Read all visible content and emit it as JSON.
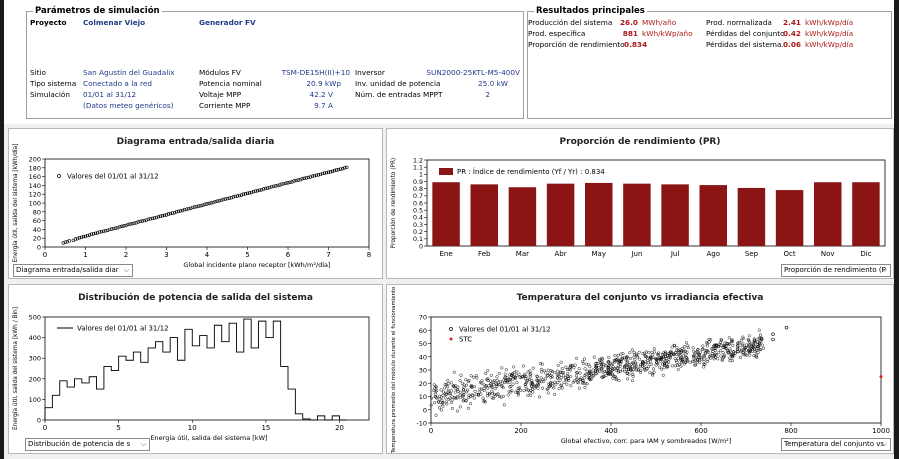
{
  "params": {
    "legend": "Parámetros de simulación",
    "proyecto_label": "Proyecto",
    "proyecto_value": "Colmenar Viejo",
    "generador_label": "Generador FV",
    "sitio_label": "Sitio",
    "sitio_value": "San Agustín del Guadalix",
    "tipo_label": "Tipo sistema",
    "tipo_value": "Conectado a la red",
    "sim_label": "Simulación",
    "sim_value": "01/01 al 31/12",
    "meteo_value": "(Datos meteo genéricos)",
    "modulos_label": "Módulos FV",
    "modulos_value": "TSM-DE15H(II)+10",
    "potencia_label": "Potencia nominal",
    "potencia_value": "20.9 kWp",
    "voltaje_label": "Voltaje MPP",
    "voltaje_value": "42.2  V",
    "corriente_label": "Corriente MPP",
    "corriente_value": "9.7  A",
    "inversor_label": "Inversor",
    "inversor_value": "SUN2000-25KTL-M5-400V",
    "inv_unidad_label": "Inv. unidad de potencia",
    "inv_unidad_value": "25.0  kW",
    "entradas_label": "Núm. de entradas MPPT",
    "entradas_value": "2"
  },
  "results": {
    "legend": "Resultados principales",
    "produccion_label": "Producción del sistema",
    "produccion_value": "26.0",
    "produccion_unit": "MWh/año",
    "especifica_label": "Prod. específica",
    "especifica_value": "881",
    "especifica_unit": "kWh/kWp/año",
    "proporcion_label": "Proporción de rendimiento",
    "proporcion_value": "0.834",
    "normalizada_label": "Prod. normalizada",
    "normalizada_value": "2.41",
    "normalizada_unit": "kWh/kWp/día",
    "perd_conjunto_label": "Pérdidas del conjunto",
    "perd_conjunto_value": "0.42",
    "perd_conjunto_unit": "kWh/kWp/día",
    "perd_sistema_label": "Pérdidas del sistema.",
    "perd_sistema_value": "0.06",
    "perd_sistema_unit": "kWh/kWp/día"
  },
  "selects": {
    "p1": "Diagrama entrada/salida diar",
    "p2": "Proporción de rendimiento (P",
    "p3": "Distribución de potencia de s",
    "p4": "Temperatura del conjunto vs"
  },
  "colors": {
    "bar": "#8b1414",
    "stc": "#e02020",
    "value_red": "#b01818",
    "nav_blue": "#1f3fa0"
  },
  "chart_data": [
    {
      "type": "scatter",
      "title": "Diagrama entrada/salida diaria",
      "xlabel": "Global incidente plano receptor [kWh/m²/día]",
      "ylabel": "Energía útil, salida del sistema [kWh/día]",
      "legend": "Valores del 01/01 al 31/12",
      "xlim": [
        0,
        8
      ],
      "ylim": [
        0,
        200
      ],
      "xticks": [
        0,
        1,
        2,
        3,
        4,
        5,
        6,
        7,
        8
      ],
      "yticks": [
        0,
        20,
        40,
        60,
        80,
        100,
        120,
        140,
        160,
        180,
        200
      ],
      "trend": {
        "slope": 24.2,
        "intercept": 0
      },
      "points": [
        [
          0.45,
          9
        ],
        [
          0.5,
          11
        ],
        [
          0.55,
          12
        ],
        [
          0.6,
          14
        ],
        [
          0.7,
          15
        ],
        [
          0.75,
          18
        ],
        [
          0.8,
          19
        ],
        [
          0.85,
          21
        ],
        [
          0.9,
          22
        ],
        [
          0.95,
          24
        ],
        [
          1.0,
          24
        ],
        [
          1.05,
          26
        ],
        [
          1.1,
          27
        ],
        [
          1.15,
          29
        ],
        [
          1.2,
          30
        ],
        [
          1.25,
          31
        ],
        [
          1.3,
          32
        ],
        [
          1.35,
          34
        ],
        [
          1.4,
          35
        ],
        [
          1.45,
          36
        ],
        [
          1.5,
          37
        ],
        [
          1.55,
          38
        ],
        [
          1.6,
          40
        ],
        [
          1.65,
          41
        ],
        [
          1.7,
          42
        ],
        [
          1.75,
          43
        ],
        [
          1.8,
          44
        ],
        [
          1.85,
          46
        ],
        [
          1.9,
          47
        ],
        [
          1.95,
          48
        ],
        [
          2.0,
          49
        ],
        [
          2.05,
          51
        ],
        [
          2.1,
          52
        ],
        [
          2.15,
          53
        ],
        [
          2.2,
          54
        ],
        [
          2.25,
          55
        ],
        [
          2.3,
          57
        ],
        [
          2.35,
          58
        ],
        [
          2.4,
          59
        ],
        [
          2.45,
          60
        ],
        [
          2.5,
          61
        ],
        [
          2.55,
          63
        ],
        [
          2.6,
          64
        ],
        [
          2.65,
          65
        ],
        [
          2.7,
          66
        ],
        [
          2.75,
          67
        ],
        [
          2.8,
          69
        ],
        [
          2.85,
          70
        ],
        [
          2.9,
          71
        ],
        [
          2.95,
          72
        ],
        [
          3.0,
          73
        ],
        [
          3.05,
          75
        ],
        [
          3.1,
          76
        ],
        [
          3.15,
          77
        ],
        [
          3.2,
          78
        ],
        [
          3.25,
          80
        ],
        [
          3.3,
          81
        ],
        [
          3.35,
          82
        ],
        [
          3.4,
          83
        ],
        [
          3.45,
          85
        ],
        [
          3.5,
          86
        ],
        [
          3.55,
          87
        ],
        [
          3.6,
          88
        ],
        [
          3.65,
          90
        ],
        [
          3.7,
          91
        ],
        [
          3.75,
          92
        ],
        [
          3.8,
          93
        ],
        [
          3.85,
          94
        ],
        [
          3.9,
          95
        ],
        [
          3.95,
          97
        ],
        [
          4.0,
          98
        ],
        [
          4.05,
          99
        ],
        [
          4.1,
          100
        ],
        [
          4.15,
          101
        ],
        [
          4.2,
          103
        ],
        [
          4.25,
          104
        ],
        [
          4.3,
          105
        ],
        [
          4.35,
          106
        ],
        [
          4.4,
          108
        ],
        [
          4.45,
          109
        ],
        [
          4.5,
          110
        ],
        [
          4.55,
          111
        ],
        [
          4.6,
          112
        ],
        [
          4.65,
          114
        ],
        [
          4.7,
          115
        ],
        [
          4.75,
          116
        ],
        [
          4.8,
          117
        ],
        [
          4.85,
          118
        ],
        [
          4.9,
          120
        ],
        [
          4.95,
          121
        ],
        [
          5.0,
          122
        ],
        [
          5.05,
          123
        ],
        [
          5.1,
          124
        ],
        [
          5.15,
          126
        ],
        [
          5.2,
          127
        ],
        [
          5.25,
          128
        ],
        [
          5.3,
          129
        ],
        [
          5.35,
          130
        ],
        [
          5.4,
          132
        ],
        [
          5.45,
          133
        ],
        [
          5.5,
          134
        ],
        [
          5.55,
          135
        ],
        [
          5.6,
          137
        ],
        [
          5.65,
          138
        ],
        [
          5.7,
          139
        ],
        [
          5.75,
          140
        ],
        [
          5.8,
          141
        ],
        [
          5.85,
          143
        ],
        [
          5.9,
          144
        ],
        [
          5.95,
          145
        ],
        [
          6.0,
          146
        ],
        [
          6.05,
          147
        ],
        [
          6.1,
          148
        ],
        [
          6.15,
          150
        ],
        [
          6.2,
          151
        ],
        [
          6.25,
          152
        ],
        [
          6.3,
          153
        ],
        [
          6.35,
          155
        ],
        [
          6.4,
          156
        ],
        [
          6.45,
          157
        ],
        [
          6.5,
          158
        ],
        [
          6.55,
          159
        ],
        [
          6.6,
          161
        ],
        [
          6.65,
          162
        ],
        [
          6.7,
          163
        ],
        [
          6.75,
          164
        ],
        [
          6.8,
          165
        ],
        [
          6.85,
          167
        ],
        [
          6.9,
          168
        ],
        [
          6.95,
          169
        ],
        [
          7.0,
          170
        ],
        [
          7.05,
          171
        ],
        [
          7.1,
          172
        ],
        [
          7.15,
          174
        ],
        [
          7.2,
          175
        ],
        [
          7.25,
          176
        ],
        [
          7.3,
          177
        ],
        [
          7.35,
          178
        ],
        [
          7.4,
          180
        ],
        [
          7.45,
          181
        ]
      ]
    },
    {
      "type": "bar",
      "title": "Proporción de rendimiento (PR)",
      "ylabel": "Proporción de rendimiento (PR)",
      "legend": "PR : Índice de rendimiento (Yf / Yr) :  0.834",
      "ylim": [
        0,
        1.2
      ],
      "yticks": [
        0,
        0.1,
        0.2,
        0.3,
        0.4,
        0.5,
        0.6,
        0.7,
        0.8,
        0.9,
        1.0,
        1.1,
        1.2
      ],
      "categories": [
        "Ene",
        "Feb",
        "Mar",
        "Abr",
        "May",
        "Jun",
        "Jul",
        "Ago",
        "Sep",
        "Oct",
        "Nov",
        "Dic"
      ],
      "values": [
        0.89,
        0.86,
        0.82,
        0.87,
        0.88,
        0.87,
        0.86,
        0.85,
        0.81,
        0.78,
        0.89,
        0.89
      ]
    },
    {
      "type": "line",
      "title": "Distribución de potencia de salida del sistema",
      "xlabel": "Energía útil, salida del sistema [kW]",
      "ylabel": "Energía útil, salida del sistema [kWh / Bin]",
      "legend": "Valores del 01/01 al 31/12",
      "xlim": [
        0,
        22
      ],
      "ylim": [
        0,
        500
      ],
      "xticks": [
        0,
        5,
        10,
        15,
        20
      ],
      "yticks": [
        0,
        100,
        200,
        300,
        400,
        500
      ],
      "step": true,
      "x": [
        0.5,
        1.0,
        1.5,
        2.0,
        2.5,
        3.0,
        3.5,
        4.0,
        4.5,
        5.0,
        5.5,
        6.0,
        6.5,
        7.0,
        7.5,
        8.0,
        8.5,
        9.0,
        9.5,
        10.0,
        10.5,
        11.0,
        11.5,
        12.0,
        12.5,
        13.0,
        13.5,
        14.0,
        14.5,
        15.0,
        15.5,
        16.0,
        16.5,
        17.0,
        17.5,
        18.0,
        18.5,
        19.0,
        19.5,
        20.0,
        20.5
      ],
      "values": [
        60,
        120,
        190,
        160,
        200,
        180,
        210,
        150,
        260,
        240,
        310,
        290,
        330,
        280,
        350,
        380,
        330,
        400,
        290,
        440,
        360,
        410,
        350,
        460,
        380,
        470,
        330,
        490,
        350,
        480,
        400,
        480,
        260,
        150,
        30,
        5,
        0,
        20,
        0,
        20,
        0
      ]
    },
    {
      "type": "scatter",
      "title": "Temperatura del conjunto vs irradiancia efectiva",
      "xlabel": "Global efectivo, corr. para IAM y sombreados [W/m²]",
      "ylabel": "Temperatura promedio del módulo durante el funcionamiento",
      "legend": [
        "Valores del 01/01 al 31/12",
        "STC"
      ],
      "xlim": [
        0,
        1000
      ],
      "ylim": [
        -10,
        70
      ],
      "xticks": [
        0,
        200,
        400,
        600,
        800,
        1000
      ],
      "yticks": [
        -10,
        0,
        10,
        20,
        30,
        40,
        50,
        60,
        70
      ],
      "band": {
        "x_start": 0,
        "x_end": 740,
        "y_low_start": -8,
        "y_high_start": 28,
        "y_low_end": 38,
        "y_high_end": 62
      },
      "outliers": [
        [
          760,
          53
        ],
        [
          760,
          57
        ],
        [
          790,
          62
        ]
      ],
      "stc_point": [
        1000,
        25
      ]
    }
  ]
}
